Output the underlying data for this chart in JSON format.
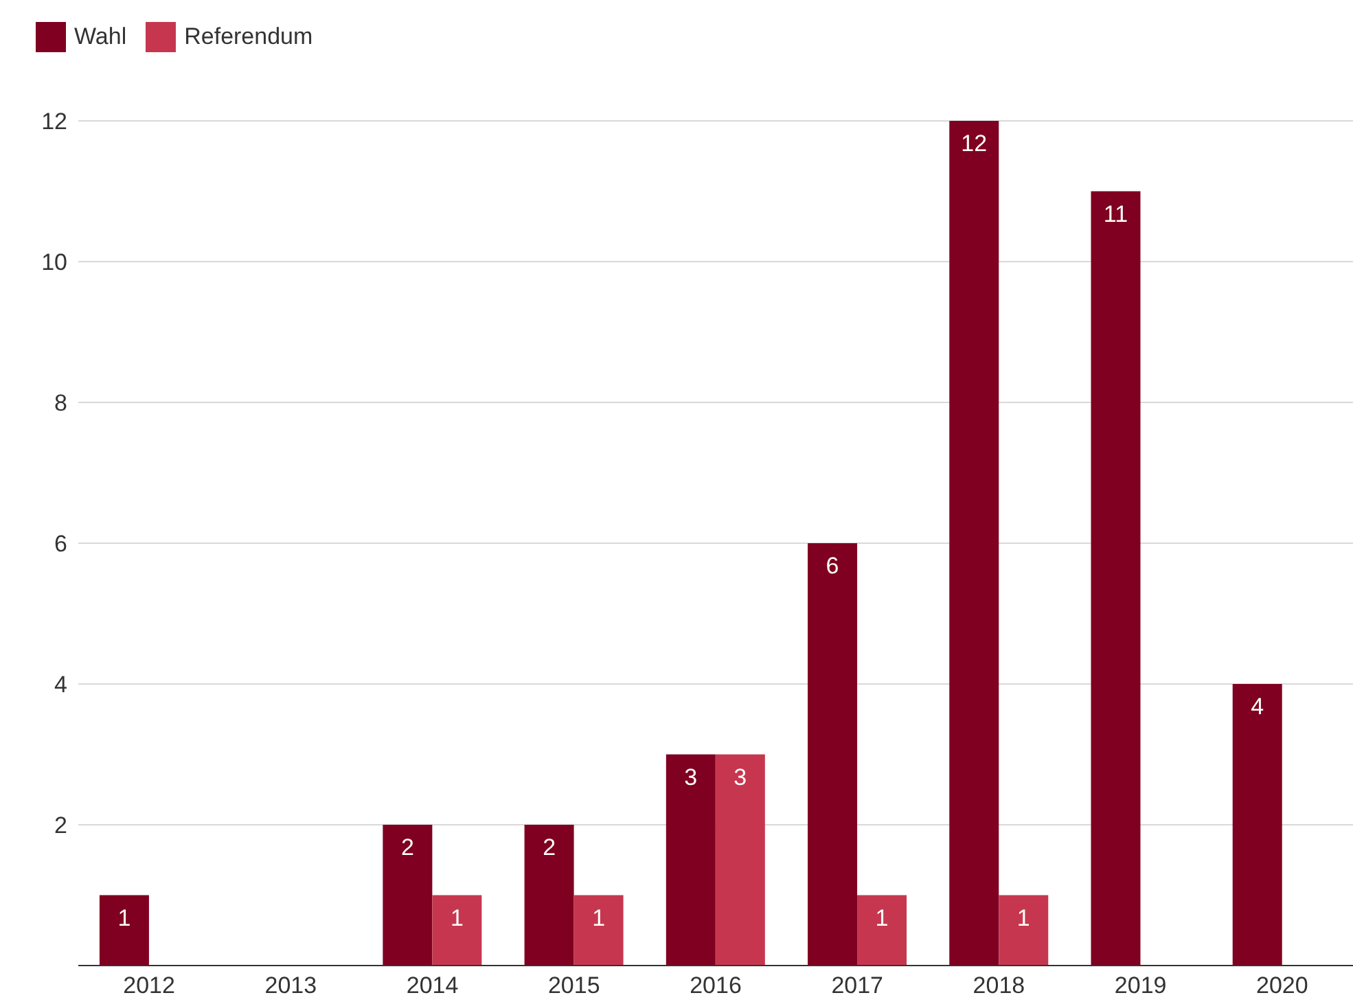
{
  "chart_data": {
    "type": "bar",
    "categories": [
      "2012",
      "2013",
      "2014",
      "2015",
      "2016",
      "2017",
      "2018",
      "2019",
      "2020"
    ],
    "series": [
      {
        "name": "Wahl",
        "color": "#7f0020",
        "values": [
          1,
          null,
          2,
          2,
          3,
          6,
          12,
          11,
          4
        ]
      },
      {
        "name": "Referendum",
        "color": "#c6374f",
        "values": [
          null,
          null,
          1,
          1,
          3,
          1,
          1,
          null,
          null
        ]
      }
    ],
    "ylim": [
      0,
      12
    ],
    "yticks": [
      2,
      4,
      6,
      8,
      10,
      12
    ],
    "grid": "y",
    "legend": "top left",
    "data_labels": true
  }
}
